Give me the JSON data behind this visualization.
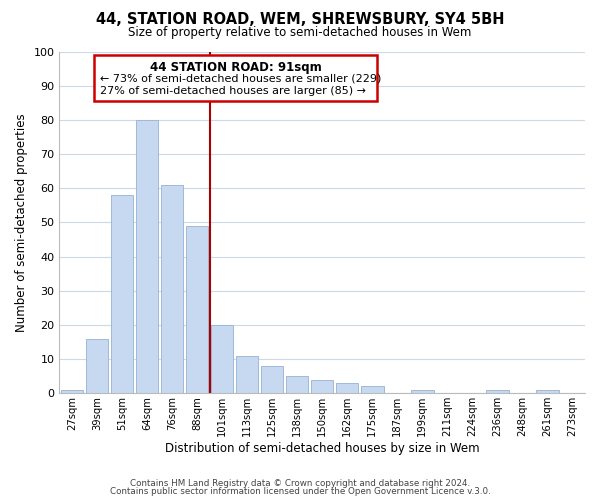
{
  "title": "44, STATION ROAD, WEM, SHREWSBURY, SY4 5BH",
  "subtitle": "Size of property relative to semi-detached houses in Wem",
  "xlabel": "Distribution of semi-detached houses by size in Wem",
  "ylabel": "Number of semi-detached properties",
  "bar_labels": [
    "27sqm",
    "39sqm",
    "51sqm",
    "64sqm",
    "76sqm",
    "88sqm",
    "101sqm",
    "113sqm",
    "125sqm",
    "138sqm",
    "150sqm",
    "162sqm",
    "175sqm",
    "187sqm",
    "199sqm",
    "211sqm",
    "224sqm",
    "236sqm",
    "248sqm",
    "261sqm",
    "273sqm"
  ],
  "bar_values": [
    1,
    16,
    58,
    80,
    61,
    49,
    20,
    11,
    8,
    5,
    4,
    3,
    2,
    0,
    1,
    0,
    0,
    1,
    0,
    1,
    0
  ],
  "bar_color": "#c6d9f0",
  "bar_edge_color": "#a0b8d8",
  "ylim": [
    0,
    100
  ],
  "yticks": [
    0,
    10,
    20,
    30,
    40,
    50,
    60,
    70,
    80,
    90,
    100
  ],
  "vline_x": 6.0,
  "vline_color": "#aa0000",
  "annotation_title": "44 STATION ROAD: 91sqm",
  "annotation_line1": "← 73% of semi-detached houses are smaller (229)",
  "annotation_line2": "27% of semi-detached houses are larger (85) →",
  "annotation_box_color": "#ffffff",
  "annotation_box_edge": "#cc0000",
  "footer1": "Contains HM Land Registry data © Crown copyright and database right 2024.",
  "footer2": "Contains public sector information licensed under the Open Government Licence v.3.0.",
  "background_color": "#ffffff",
  "grid_color": "#ccd9e8"
}
